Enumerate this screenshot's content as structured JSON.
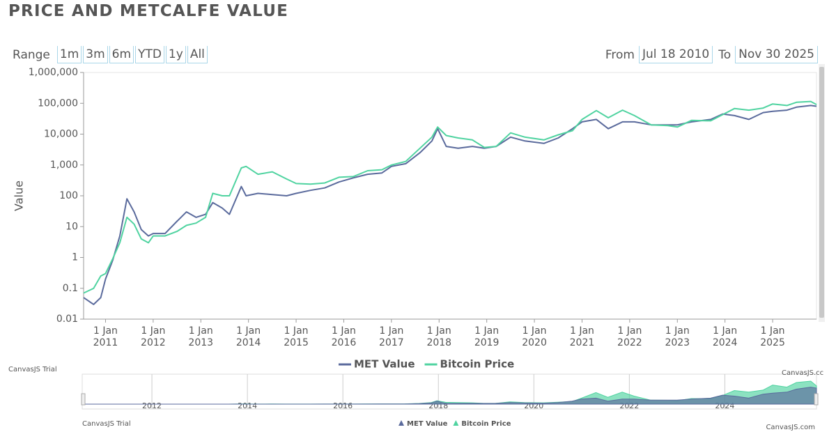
{
  "chart_data": {
    "type": "line",
    "title": "PRICE AND METCALFE VALUE",
    "y_label": "Value",
    "x": [
      2010.54,
      2010.75,
      2010.9,
      2011.0,
      2011.15,
      2011.3,
      2011.45,
      2011.6,
      2011.75,
      2011.9,
      2012.0,
      2012.25,
      2012.5,
      2012.7,
      2012.9,
      2013.1,
      2013.25,
      2013.45,
      2013.6,
      2013.85,
      2013.95,
      2014.2,
      2014.5,
      2014.8,
      2015.0,
      2015.3,
      2015.6,
      2015.9,
      2016.2,
      2016.5,
      2016.8,
      2017.0,
      2017.3,
      2017.6,
      2017.85,
      2017.97,
      2018.15,
      2018.4,
      2018.7,
      2018.95,
      2019.2,
      2019.5,
      2019.8,
      2020.2,
      2020.5,
      2020.8,
      2021.0,
      2021.3,
      2021.55,
      2021.85,
      2022.1,
      2022.45,
      2022.8,
      2023.0,
      2023.3,
      2023.7,
      2023.95,
      2024.2,
      2024.5,
      2024.8,
      2025.0,
      2025.3,
      2025.5,
      2025.8,
      2025.92
    ],
    "series": [
      {
        "name": "MET Value",
        "color": "#5a6a9c",
        "values": [
          0.05,
          0.03,
          0.05,
          0.2,
          0.8,
          5,
          80,
          30,
          8,
          5,
          6,
          6,
          15,
          30,
          20,
          25,
          60,
          40,
          25,
          200,
          100,
          120,
          110,
          100,
          120,
          150,
          180,
          280,
          380,
          500,
          550,
          900,
          1100,
          2500,
          6000,
          15000,
          4000,
          3500,
          4000,
          3500,
          4000,
          8000,
          6000,
          5000,
          7500,
          15000,
          25000,
          30000,
          15000,
          25000,
          25000,
          20000,
          20000,
          20000,
          25000,
          30000,
          45000,
          40000,
          30000,
          50000,
          55000,
          60000,
          75000,
          85000,
          80000
        ]
      },
      {
        "name": "Bitcoin Price",
        "color": "#4fd3a0",
        "values": [
          0.07,
          0.1,
          0.25,
          0.3,
          0.9,
          3,
          20,
          12,
          4,
          3,
          5,
          5,
          7,
          11,
          13,
          20,
          120,
          100,
          100,
          800,
          900,
          500,
          600,
          350,
          250,
          240,
          260,
          400,
          420,
          650,
          700,
          1000,
          1300,
          3500,
          8000,
          17000,
          9000,
          7500,
          6500,
          3700,
          4000,
          11000,
          8000,
          6500,
          9500,
          13000,
          30000,
          58000,
          34000,
          60000,
          40000,
          20000,
          19000,
          17000,
          28000,
          27000,
          43000,
          68000,
          60000,
          70000,
          95000,
          85000,
          108000,
          115000,
          91000
        ]
      }
    ],
    "xlim": [
      2010.54,
      2025.92
    ],
    "xticks": [
      {
        "value": 2011,
        "label": "1 Jan 2011"
      },
      {
        "value": 2012,
        "label": "1 Jan 2012"
      },
      {
        "value": 2013,
        "label": "1 Jan 2013"
      },
      {
        "value": 2014,
        "label": "1 Jan 2014"
      },
      {
        "value": 2015,
        "label": "1 Jan 2015"
      },
      {
        "value": 2016,
        "label": "1 Jan 2016"
      },
      {
        "value": 2017,
        "label": "1 Jan 2017"
      },
      {
        "value": 2018,
        "label": "1 Jan 2018"
      },
      {
        "value": 2019,
        "label": "1 Jan 2019"
      },
      {
        "value": 2020,
        "label": "1 Jan 2020"
      },
      {
        "value": 2021,
        "label": "1 Jan 2021"
      },
      {
        "value": 2022,
        "label": "1 Jan 2022"
      },
      {
        "value": 2023,
        "label": "1 Jan 2023"
      },
      {
        "value": 2024,
        "label": "1 Jan 2024"
      },
      {
        "value": 2025,
        "label": "1 Jan 2025"
      }
    ],
    "ylim": [
      0.01,
      1000000
    ],
    "yticks": [
      0.01,
      0.1,
      1,
      10,
      100,
      {
        "value": 1000,
        "label": "1,000"
      },
      {
        "value": 10000,
        "label": "10,000"
      },
      {
        "value": 100000,
        "label": "100,000"
      },
      {
        "value": 1000000,
        "label": "1,000,000"
      }
    ],
    "log_y": true,
    "grid": false,
    "legend": "bottom"
  },
  "navigator": {
    "xticks": [
      2012,
      2014,
      2016,
      2018,
      2020,
      2022,
      2024
    ]
  },
  "controls": {
    "range_label": "Range",
    "buttons": [
      "1m",
      "3m",
      "6m",
      "YTD",
      "1y",
      "All"
    ],
    "from_label": "From",
    "from": "Jul 18 2010",
    "to_label": "To",
    "to": "Nov 30 2025"
  },
  "watermarks": [
    "CanvasJS Trial",
    "CanvasJS.cc",
    "CanvasJS Trial",
    "CanvasJS.com"
  ]
}
